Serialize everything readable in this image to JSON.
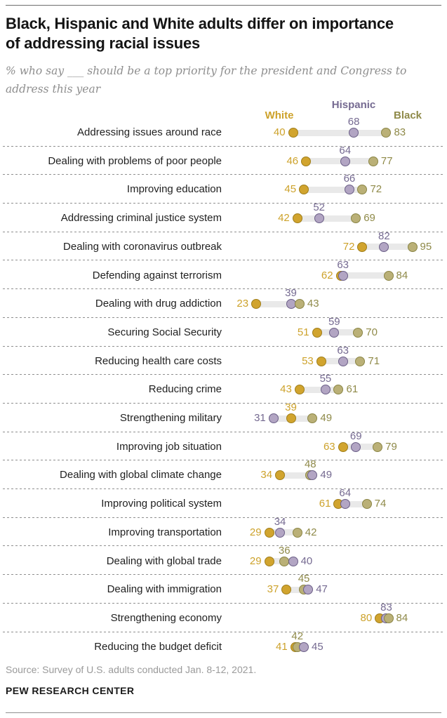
{
  "header": {
    "title": "Black, Hispanic and White adults differ on importance\nof addressing racial issues",
    "subtitle": "% who say ___ should be a top priority for the president and Congress to\naddress this year"
  },
  "chart_data": {
    "type": "scatter",
    "variant": "connected-dot-plot",
    "title": "Black, Hispanic and White adults differ on importance of addressing racial issues",
    "x_axis": {
      "unit": "percent",
      "min": 0,
      "max": 100,
      "visible": false
    },
    "legend_position": "top",
    "row_separator_style": "dashed",
    "connector_color": "#e9e9e9",
    "categories": [
      "Addressing issues around race",
      "Dealing with problems of poor people",
      "Improving education",
      "Addressing criminal justice system",
      "Dealing with coronavirus outbreak",
      "Defending against terrorism",
      "Dealing with drug addiction",
      "Securing Social Security",
      "Reducing health care costs",
      "Reducing crime",
      "Strengthening military",
      "Improving job situation",
      "Dealing with global climate change",
      "Improving political system",
      "Improving transportation",
      "Dealing with global trade",
      "Dealing with immigration",
      "Strengthening economy",
      "Reducing the budget deficit"
    ],
    "series": [
      {
        "name": "White",
        "label_color": "#cda22b",
        "dot_fill": "#d1a42e",
        "dot_stroke": "#a07e1a",
        "values": [
          40,
          46,
          45,
          42,
          72,
          62,
          23,
          51,
          53,
          43,
          39,
          63,
          34,
          61,
          29,
          29,
          37,
          80,
          41
        ]
      },
      {
        "name": "Hispanic",
        "label_color": "#756a91",
        "dot_fill": "#b2a5c3",
        "dot_stroke": "#6b5f87",
        "values": [
          68,
          64,
          66,
          52,
          82,
          63,
          39,
          59,
          63,
          55,
          31,
          69,
          49,
          64,
          34,
          40,
          47,
          83,
          45
        ]
      },
      {
        "name": "Black",
        "label_color": "#8f8a49",
        "dot_fill": "#bab077",
        "dot_stroke": "#8a8545",
        "values": [
          83,
          77,
          72,
          69,
          95,
          84,
          43,
          70,
          71,
          61,
          49,
          79,
          48,
          74,
          42,
          36,
          45,
          84,
          42
        ]
      }
    ]
  },
  "footer": {
    "source": "Source: Survey of U.S. adults conducted Jan. 8-12, 2021.",
    "brand": "PEW RESEARCH CENTER"
  }
}
